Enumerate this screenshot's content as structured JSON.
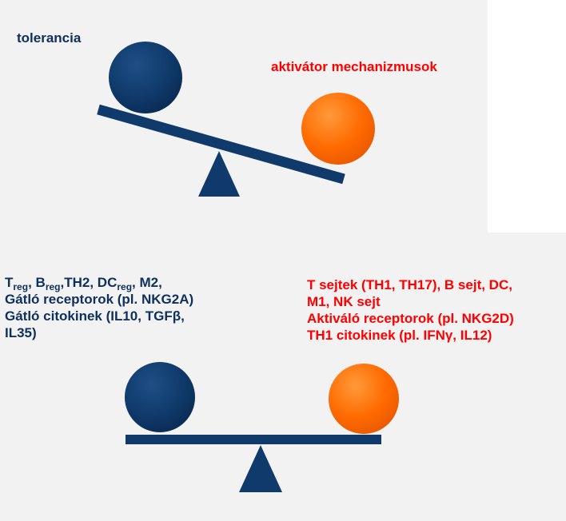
{
  "top": {
    "left_label": "tolerancia",
    "right_label": "aktivátor mechanizmusok"
  },
  "bottom": {
    "left_lines": [
      {
        "l1_t": "T",
        "l1_tsub": "reg",
        "l1_sep1": ", ",
        "l1_b": "B",
        "l1_bsub": "reg",
        "l1_mid": ",TH2, ",
        "l1_dc": "DC",
        "l1_dcsub": "reg",
        "l1_end": ", M2,"
      },
      "Gátló receptorok (pl. NKG2A)",
      "Gátló citokinek (IL10, TGFβ,",
      "IL35)"
    ],
    "right_lines": [
      "T sejtek (TH1, TH17), B sejt, DC,",
      "M1, NK sejt",
      "Aktiváló receptorok (pl. NKG2D)",
      "TH1 citokinek (pl. IFNγ, IL12)"
    ]
  },
  "colors": {
    "navy": "#0f3a6b",
    "orange": "#ff6a00",
    "label_blue": "#0f2f5c",
    "label_red": "#ff0000"
  }
}
